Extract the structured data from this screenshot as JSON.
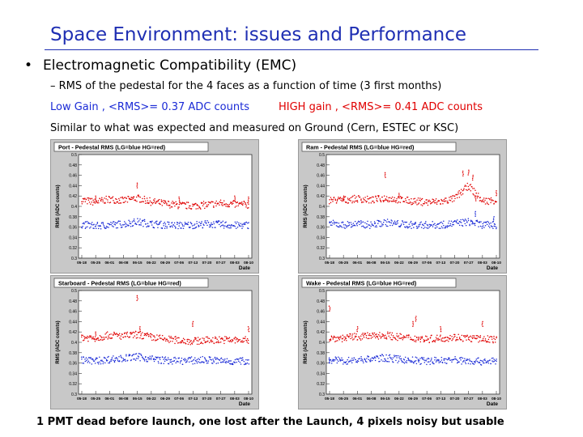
{
  "slide": {
    "title": "Space Environment: issues and Performance",
    "bullet_symbol": "•",
    "bullet": "Electromagnetic Compatibility (EMC)",
    "sub_bullet": "–   RMS of the pedestal for the 4 faces as a function of time (3 first months)",
    "low_gain": "Low Gain , <RMS>= 0.37 ADC counts",
    "high_gain": "HIGH gain , <RMS>= 0.41 ADC counts",
    "similar": "Similar to what was expected and measured on Ground (Cern, ESTEC or KSC)",
    "footer": "1 PMT dead before launch, one lost after the Launch, 4 pixels noisy but usable"
  },
  "chart_data": [
    {
      "type": "scatter",
      "title": "Port - Pedestal RMS (LG=blue HG=red)",
      "xlabel": "Date",
      "ylabel": "RMS (ADC counts)",
      "x_ticks": [
        "05-18",
        "05-25",
        "06-01",
        "06-08",
        "06-15",
        "06-22",
        "06-29",
        "07-06",
        "07-13",
        "07-20",
        "07-27",
        "08-03",
        "08-10"
      ],
      "y_ticks": [
        "0.3",
        "0.32",
        "0.34",
        "0.36",
        "0.38",
        "0.4",
        "0.42",
        "0.44",
        "0.46",
        "0.48",
        "0.5"
      ],
      "ylim": [
        0.3,
        0.5
      ],
      "series": [
        {
          "color": "#e00000",
          "values": [
            0.412,
            0.408,
            0.414,
            0.411,
            0.416,
            0.409,
            0.405,
            0.402,
            0.401,
            0.403,
            0.406,
            0.404,
            0.403
          ],
          "outliers": [
            [
              4,
              0.445
            ],
            [
              1,
              0.42
            ],
            [
              7,
              0.418
            ],
            [
              11,
              0.42
            ],
            [
              12,
              0.418
            ]
          ]
        },
        {
          "color": "#1a2ad6",
          "values": [
            0.365,
            0.362,
            0.364,
            0.366,
            0.37,
            0.366,
            0.364,
            0.363,
            0.364,
            0.366,
            0.365,
            0.363,
            0.364
          ],
          "outliers": []
        }
      ]
    },
    {
      "type": "scatter",
      "title": "Ram - Pedestal RMS (LG=blue HG=red)",
      "xlabel": "Date",
      "ylabel": "RMS (ADC counts)",
      "x_ticks": [
        "05-18",
        "05-25",
        "06-01",
        "06-08",
        "06-15",
        "06-22",
        "06-29",
        "07-06",
        "07-13",
        "07-20",
        "07-27",
        "08-03",
        "08-10"
      ],
      "y_ticks": [
        "0.3",
        "0.32",
        "0.34",
        "0.36",
        "0.38",
        "0.4",
        "0.42",
        "0.44",
        "0.46",
        "0.48",
        "0.5"
      ],
      "ylim": [
        0.3,
        0.5
      ],
      "series": [
        {
          "color": "#e00000",
          "values": [
            0.412,
            0.412,
            0.415,
            0.412,
            0.416,
            0.413,
            0.41,
            0.408,
            0.409,
            0.415,
            0.44,
            0.41,
            0.412
          ],
          "outliers": [
            [
              4,
              0.465
            ],
            [
              10,
              0.47
            ],
            [
              10.3,
              0.46
            ],
            [
              9.6,
              0.468
            ],
            [
              10.5,
              0.42
            ],
            [
              12,
              0.43
            ],
            [
              1,
              0.42
            ],
            [
              5,
              0.425
            ]
          ]
        },
        {
          "color": "#1a2ad6",
          "values": [
            0.367,
            0.364,
            0.366,
            0.364,
            0.369,
            0.366,
            0.364,
            0.364,
            0.364,
            0.367,
            0.37,
            0.364,
            0.364
          ],
          "outliers": [
            [
              10.5,
              0.39
            ],
            [
              11.8,
              0.38
            ]
          ]
        }
      ]
    },
    {
      "type": "scatter",
      "title": "Starboard - Pedestal RMS (LG=blue HG=red)",
      "xlabel": "Date",
      "ylabel": "RMS (ADC counts)",
      "x_ticks": [
        "05-18",
        "05-25",
        "06-01",
        "06-08",
        "06-15",
        "06-22",
        "06-29",
        "07-06",
        "07-13",
        "07-20",
        "07-27",
        "08-03",
        "08-10"
      ],
      "y_ticks": [
        "0.3",
        "0.32",
        "0.34",
        "0.36",
        "0.38",
        "0.4",
        "0.42",
        "0.44",
        "0.46",
        "0.48",
        "0.5"
      ],
      "ylim": [
        0.3,
        0.5
      ],
      "series": [
        {
          "color": "#e00000",
          "values": [
            0.41,
            0.408,
            0.414,
            0.412,
            0.415,
            0.41,
            0.406,
            0.404,
            0.402,
            0.404,
            0.405,
            0.404,
            0.404
          ],
          "outliers": [
            [
              4,
              0.49
            ],
            [
              8,
              0.44
            ],
            [
              4.2,
              0.43
            ],
            [
              12,
              0.43
            ],
            [
              1,
              0.42
            ]
          ]
        },
        {
          "color": "#1a2ad6",
          "values": [
            0.366,
            0.364,
            0.367,
            0.369,
            0.372,
            0.368,
            0.365,
            0.364,
            0.365,
            0.366,
            0.364,
            0.363,
            0.364
          ],
          "outliers": []
        }
      ]
    },
    {
      "type": "scatter",
      "title": "Wake - Pedestal RMS (LG=blue HG=red)",
      "xlabel": "Date",
      "ylabel": "RMS (ADC counts)",
      "x_ticks": [
        "05-18",
        "05-25",
        "06-01",
        "06-08",
        "06-15",
        "06-22",
        "06-29",
        "07-06",
        "07-13",
        "07-20",
        "07-27",
        "08-03",
        "08-10"
      ],
      "y_ticks": [
        "0.3",
        "0.32",
        "0.34",
        "0.36",
        "0.38",
        "0.4",
        "0.42",
        "0.44",
        "0.46",
        "0.48",
        "0.5"
      ],
      "ylim": [
        0.3,
        0.5
      ],
      "series": [
        {
          "color": "#e00000",
          "values": [
            0.408,
            0.408,
            0.411,
            0.412,
            0.414,
            0.41,
            0.408,
            0.406,
            0.408,
            0.41,
            0.408,
            0.406,
            0.406
          ],
          "outliers": [
            [
              0,
              0.47
            ],
            [
              6.2,
              0.45
            ],
            [
              6,
              0.44
            ],
            [
              11,
              0.44
            ],
            [
              2,
              0.43
            ],
            [
              8,
              0.43
            ]
          ]
        },
        {
          "color": "#1a2ad6",
          "values": [
            0.366,
            0.364,
            0.366,
            0.368,
            0.37,
            0.367,
            0.365,
            0.364,
            0.365,
            0.366,
            0.364,
            0.363,
            0.364
          ],
          "outliers": [
            [
              0,
              0.37
            ]
          ]
        }
      ]
    }
  ]
}
